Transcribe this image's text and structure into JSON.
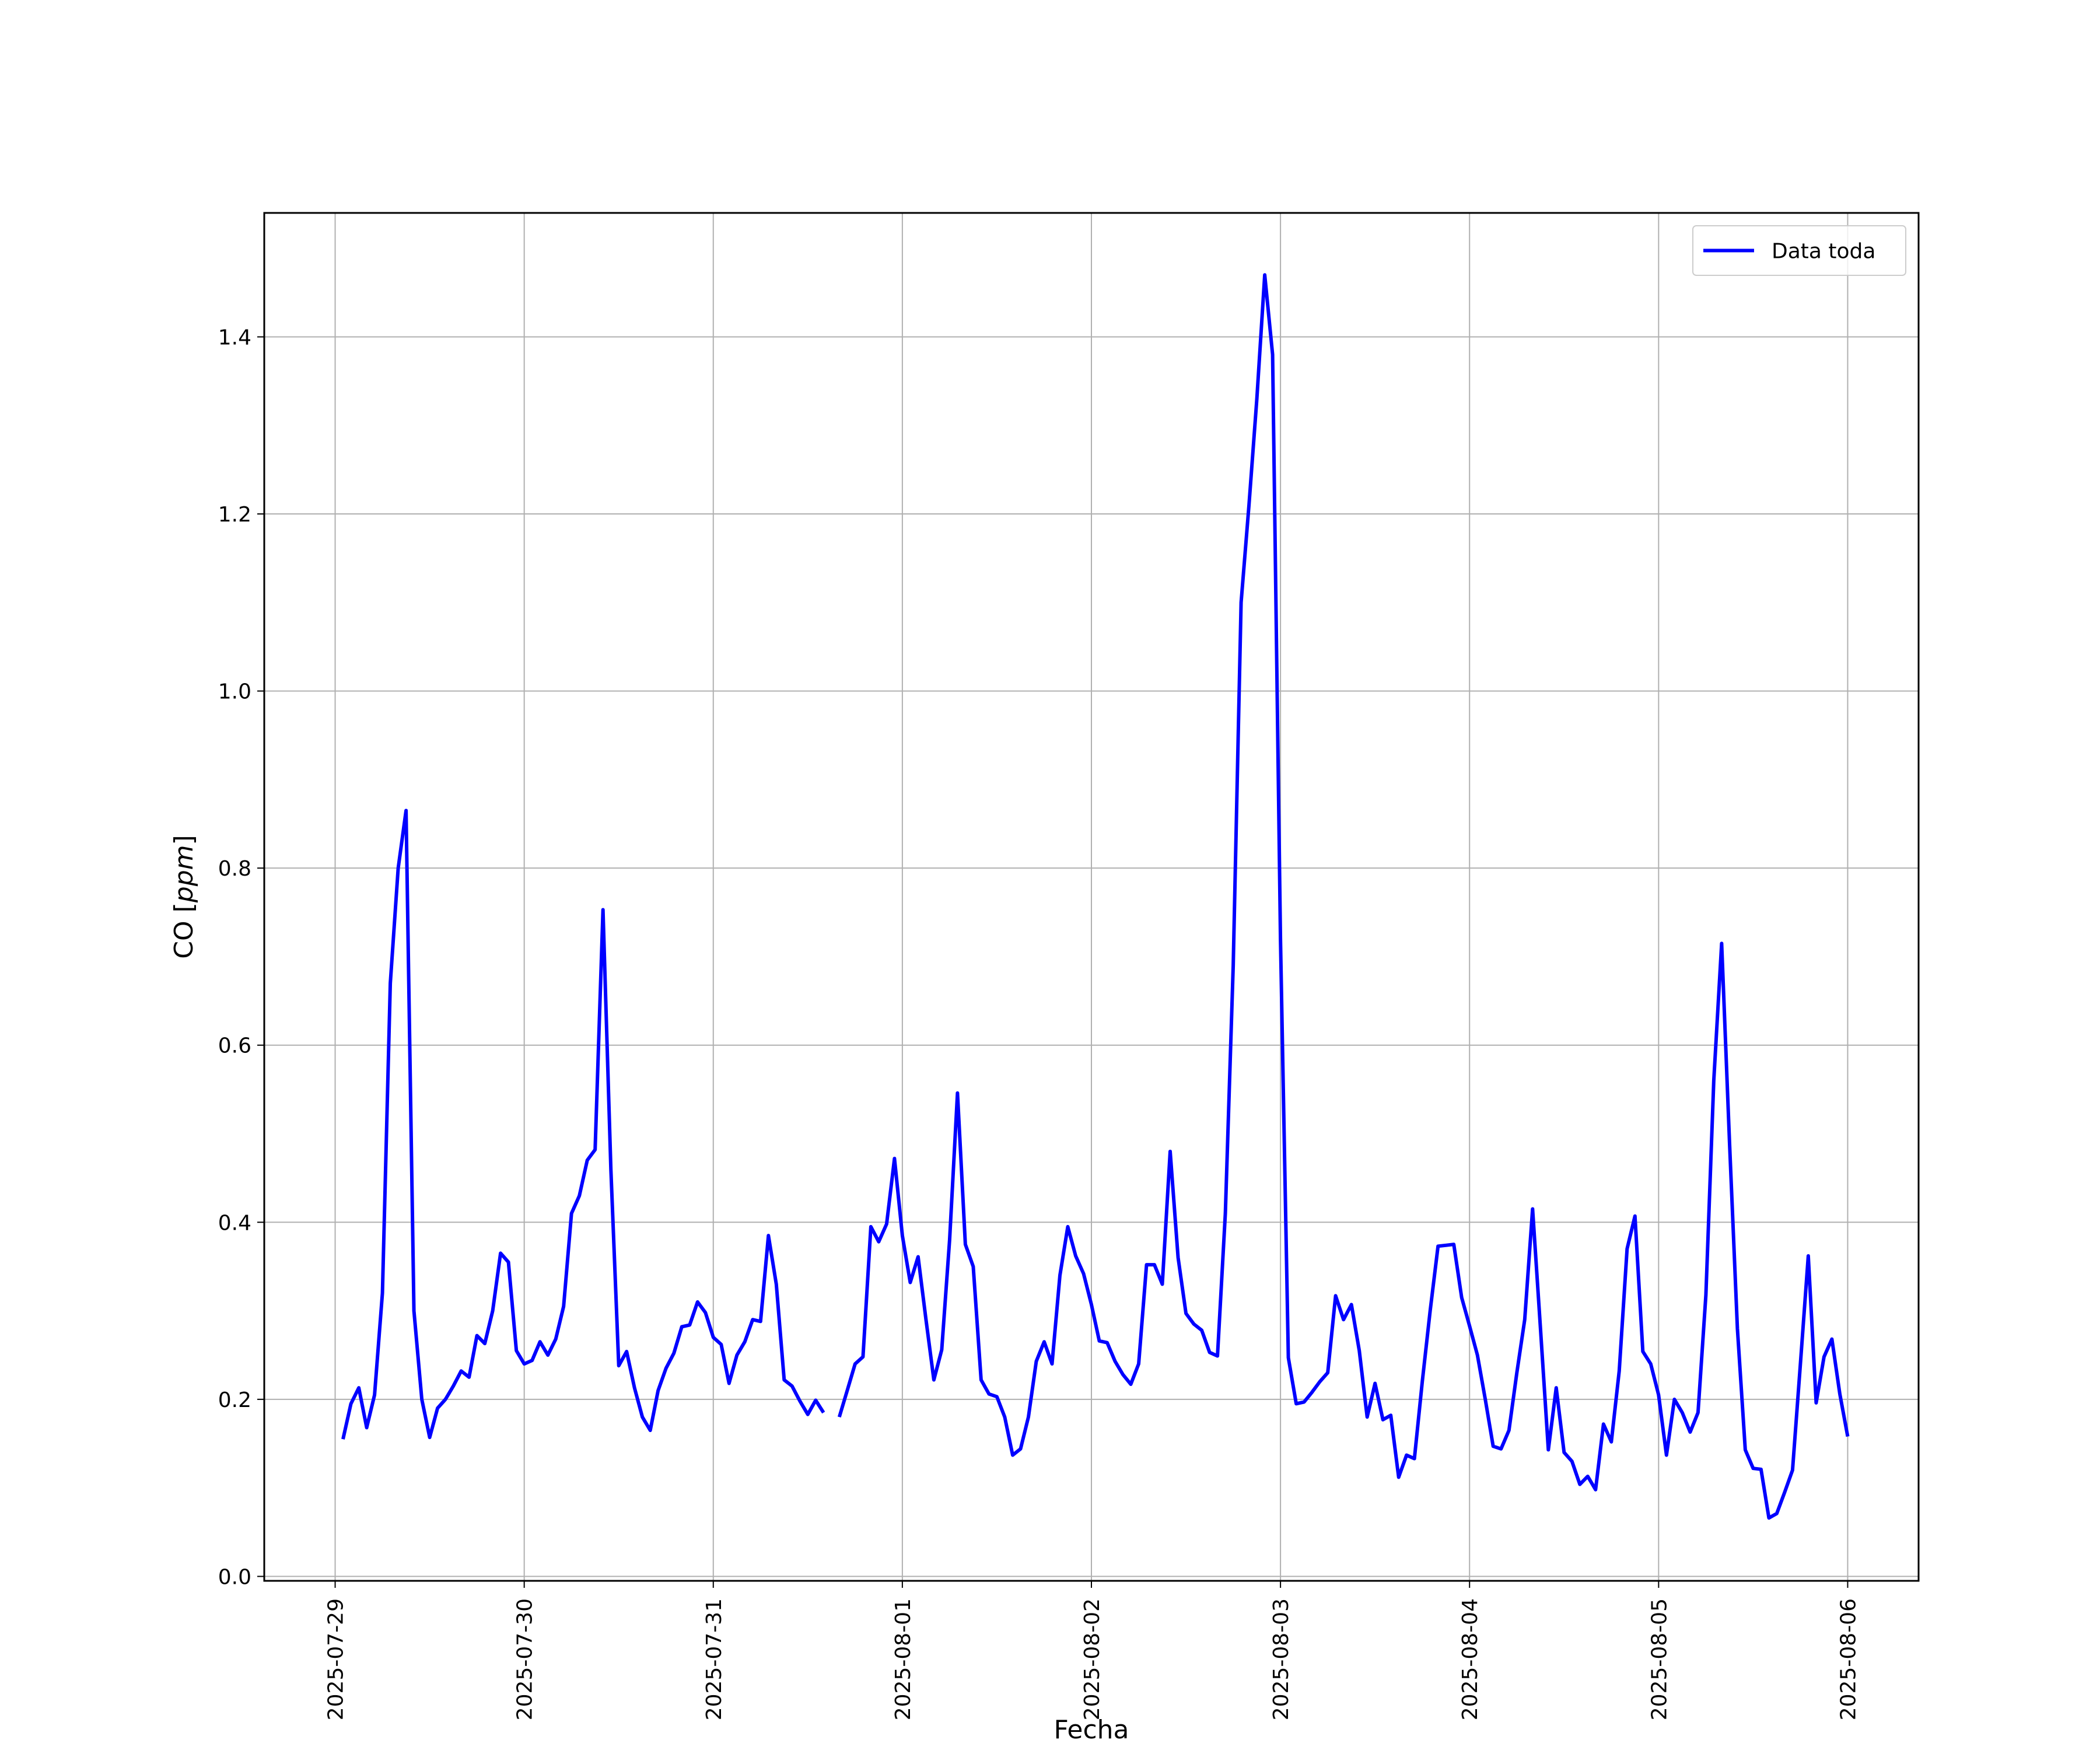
{
  "chart_data": {
    "type": "line",
    "xlabel": "Fecha",
    "ylabel_prefix": "CO [",
    "ylabel_unit": "ppm",
    "ylabel_suffix": "]",
    "ylim": [
      -0.005,
      1.54
    ],
    "yticks": [
      0.0,
      0.2,
      0.4,
      0.6,
      0.8,
      1.0,
      1.2,
      1.4
    ],
    "ytick_labels": [
      "0.0",
      "0.2",
      "0.4",
      "0.6",
      "0.8",
      "1.0",
      "1.2",
      "1.4"
    ],
    "xlim": [
      "2025-07-28 15:00",
      "2025-08-06 09:00"
    ],
    "xticks": [
      "2025-07-29",
      "2025-07-30",
      "2025-07-31",
      "2025-08-01",
      "2025-08-02",
      "2025-08-03",
      "2025-08-04",
      "2025-08-05",
      "2025-08-06"
    ],
    "grid": true,
    "legend_position": "top-right",
    "series": [
      {
        "name": "Data toda",
        "color": "#0000ff",
        "x": [
          "2025-07-29 01:00",
          "2025-07-29 02:00",
          "2025-07-29 03:00",
          "2025-07-29 04:00",
          "2025-07-29 05:00",
          "2025-07-29 06:00",
          "2025-07-29 07:00",
          "2025-07-29 08:00",
          "2025-07-29 09:00",
          "2025-07-29 10:00",
          "2025-07-29 11:00",
          "2025-07-29 12:00",
          "2025-07-29 13:00",
          "2025-07-29 14:00",
          "2025-07-29 15:00",
          "2025-07-29 16:00",
          "2025-07-29 17:00",
          "2025-07-29 18:00",
          "2025-07-29 19:00",
          "2025-07-29 20:00",
          "2025-07-29 21:00",
          "2025-07-29 22:00",
          "2025-07-29 23:00",
          "2025-07-30 00:00",
          "2025-07-30 01:00",
          "2025-07-30 02:00",
          "2025-07-30 03:00",
          "2025-07-30 04:00",
          "2025-07-30 05:00",
          "2025-07-30 06:00",
          "2025-07-30 07:00",
          "2025-07-30 08:00",
          "2025-07-30 09:00",
          "2025-07-30 10:00",
          "2025-07-30 11:00",
          "2025-07-30 12:00",
          "2025-07-30 13:00",
          "2025-07-30 14:00",
          "2025-07-30 15:00",
          "2025-07-30 16:00",
          "2025-07-30 17:00",
          "2025-07-30 18:00",
          "2025-07-30 19:00",
          "2025-07-30 20:00",
          "2025-07-30 21:00",
          "2025-07-30 22:00",
          "2025-07-30 23:00",
          "2025-07-31 00:00",
          "2025-07-31 01:00",
          "2025-07-31 02:00",
          "2025-07-31 03:00",
          "2025-07-31 04:00",
          "2025-07-31 05:00",
          "2025-07-31 06:00",
          "2025-07-31 07:00",
          "2025-07-31 08:00",
          "2025-07-31 09:00",
          "2025-07-31 10:00",
          "2025-07-31 11:00",
          "2025-07-31 12:00",
          "2025-07-31 13:00",
          "2025-07-31 14:00",
          "2025-07-31 16:00",
          "2025-07-31 17:00",
          "2025-07-31 18:00",
          "2025-07-31 19:00",
          "2025-07-31 20:00",
          "2025-07-31 21:00",
          "2025-07-31 22:00",
          "2025-07-31 23:00",
          "2025-08-01 00:00",
          "2025-08-01 01:00",
          "2025-08-01 02:00",
          "2025-08-01 03:00",
          "2025-08-01 04:00",
          "2025-08-01 05:00",
          "2025-08-01 06:00",
          "2025-08-01 07:00",
          "2025-08-01 08:00",
          "2025-08-01 09:00",
          "2025-08-01 10:00",
          "2025-08-01 11:00",
          "2025-08-01 12:00",
          "2025-08-01 13:00",
          "2025-08-01 14:00",
          "2025-08-01 15:00",
          "2025-08-01 16:00",
          "2025-08-01 17:00",
          "2025-08-01 18:00",
          "2025-08-01 19:00",
          "2025-08-01 20:00",
          "2025-08-01 21:00",
          "2025-08-01 22:00",
          "2025-08-01 23:00",
          "2025-08-02 00:00",
          "2025-08-02 01:00",
          "2025-08-02 02:00",
          "2025-08-02 03:00",
          "2025-08-02 04:00",
          "2025-08-02 05:00",
          "2025-08-02 06:00",
          "2025-08-02 07:00",
          "2025-08-02 08:00",
          "2025-08-02 09:00",
          "2025-08-02 10:00",
          "2025-08-02 11:00",
          "2025-08-02 12:00",
          "2025-08-02 13:00",
          "2025-08-02 14:00",
          "2025-08-02 15:00",
          "2025-08-02 16:00",
          "2025-08-02 17:00",
          "2025-08-02 18:00",
          "2025-08-02 19:00",
          "2025-08-02 20:00",
          "2025-08-02 21:00",
          "2025-08-02 22:00",
          "2025-08-02 23:00",
          "2025-08-03 00:00",
          "2025-08-03 01:00",
          "2025-08-03 02:00",
          "2025-08-03 03:00",
          "2025-08-03 04:00",
          "2025-08-03 05:00",
          "2025-08-03 06:00",
          "2025-08-03 07:00",
          "2025-08-03 08:00",
          "2025-08-03 09:00",
          "2025-08-03 10:00",
          "2025-08-03 11:00",
          "2025-08-03 12:00",
          "2025-08-03 13:00",
          "2025-08-03 14:00",
          "2025-08-03 15:00",
          "2025-08-03 16:00",
          "2025-08-03 17:00",
          "2025-08-03 18:00",
          "2025-08-03 19:00",
          "2025-08-03 20:00",
          "2025-08-03 21:00",
          "2025-08-03 22:00",
          "2025-08-03 23:00",
          "2025-08-04 00:00",
          "2025-08-04 01:00",
          "2025-08-04 02:00",
          "2025-08-04 03:00",
          "2025-08-04 04:00",
          "2025-08-04 05:00",
          "2025-08-04 06:00",
          "2025-08-04 07:00",
          "2025-08-04 08:00",
          "2025-08-04 09:00",
          "2025-08-04 10:00",
          "2025-08-04 11:00",
          "2025-08-04 12:00",
          "2025-08-04 13:00",
          "2025-08-04 14:00",
          "2025-08-04 15:00",
          "2025-08-04 16:00",
          "2025-08-04 17:00",
          "2025-08-04 18:00",
          "2025-08-04 19:00",
          "2025-08-04 20:00",
          "2025-08-04 21:00",
          "2025-08-04 22:00",
          "2025-08-04 23:00",
          "2025-08-05 00:00",
          "2025-08-05 01:00",
          "2025-08-05 02:00",
          "2025-08-05 03:00",
          "2025-08-05 04:00",
          "2025-08-05 05:00",
          "2025-08-05 06:00",
          "2025-08-05 07:00",
          "2025-08-05 08:00",
          "2025-08-05 09:00",
          "2025-08-05 10:00",
          "2025-08-05 11:00",
          "2025-08-05 12:00",
          "2025-08-05 13:00",
          "2025-08-05 14:00",
          "2025-08-05 15:00",
          "2025-08-05 16:00",
          "2025-08-05 17:00",
          "2025-08-05 18:00",
          "2025-08-05 19:00",
          "2025-08-05 20:00",
          "2025-08-05 21:00",
          "2025-08-05 22:00",
          "2025-08-05 23:00",
          "2025-08-06 00:00"
        ],
        "y": [
          0.155,
          0.195,
          0.213,
          0.168,
          0.205,
          0.32,
          0.67,
          0.8,
          0.865,
          0.3,
          0.2,
          0.157,
          0.19,
          0.2,
          0.215,
          0.232,
          0.225,
          0.272,
          0.263,
          0.3,
          0.365,
          0.355,
          0.255,
          0.24,
          0.244,
          0.265,
          0.25,
          0.268,
          0.305,
          0.41,
          0.43,
          0.47,
          0.482,
          0.753,
          0.46,
          0.238,
          0.254,
          0.213,
          0.18,
          0.165,
          0.21,
          0.235,
          0.252,
          0.282,
          0.284,
          0.31,
          0.298,
          0.27,
          0.262,
          0.218,
          0.25,
          0.265,
          0.29,
          0.288,
          0.385,
          0.33,
          0.222,
          0.215,
          0.198,
          0.183,
          0.199,
          0.185,
          0.18,
          0.21,
          0.24,
          0.248,
          0.395,
          0.378,
          0.398,
          0.472,
          0.385,
          0.332,
          0.361,
          0.29,
          0.222,
          0.256,
          0.38,
          0.546,
          0.375,
          0.35,
          0.222,
          0.206,
          0.203,
          0.18,
          0.137,
          0.144,
          0.18,
          0.243,
          0.265,
          0.24,
          0.34,
          0.395,
          0.362,
          0.342,
          0.307,
          0.266,
          0.264,
          0.243,
          0.228,
          0.217,
          0.24,
          0.352,
          0.352,
          0.33,
          0.48,
          0.36,
          0.297,
          0.285,
          0.278,
          0.253,
          0.249,
          0.41,
          0.69,
          1.1,
          1.21,
          1.33,
          1.47,
          1.38,
          0.72,
          0.247,
          0.195,
          0.197,
          0.208,
          0.22,
          0.23,
          0.317,
          0.29,
          0.307,
          0.255,
          0.18,
          0.218,
          0.177,
          0.182,
          0.112,
          0.137,
          0.133,
          0.22,
          0.3,
          0.373,
          0.374,
          0.375,
          0.315,
          0.283,
          0.25,
          0.2,
          0.147,
          0.144,
          0.165,
          0.23,
          0.29,
          0.415,
          0.28,
          0.143,
          0.213,
          0.14,
          0.13,
          0.104,
          0.113,
          0.098,
          0.172,
          0.152,
          0.232,
          0.37,
          0.407,
          0.254,
          0.24,
          0.205,
          0.137,
          0.2,
          0.185,
          0.163,
          0.185,
          0.318,
          0.56,
          0.715,
          0.49,
          0.28,
          0.143,
          0.122,
          0.121,
          0.066,
          0.071,
          0.095,
          0.12,
          0.24,
          0.362,
          0.196,
          0.248,
          0.268,
          0.206,
          0.158
        ]
      }
    ]
  }
}
